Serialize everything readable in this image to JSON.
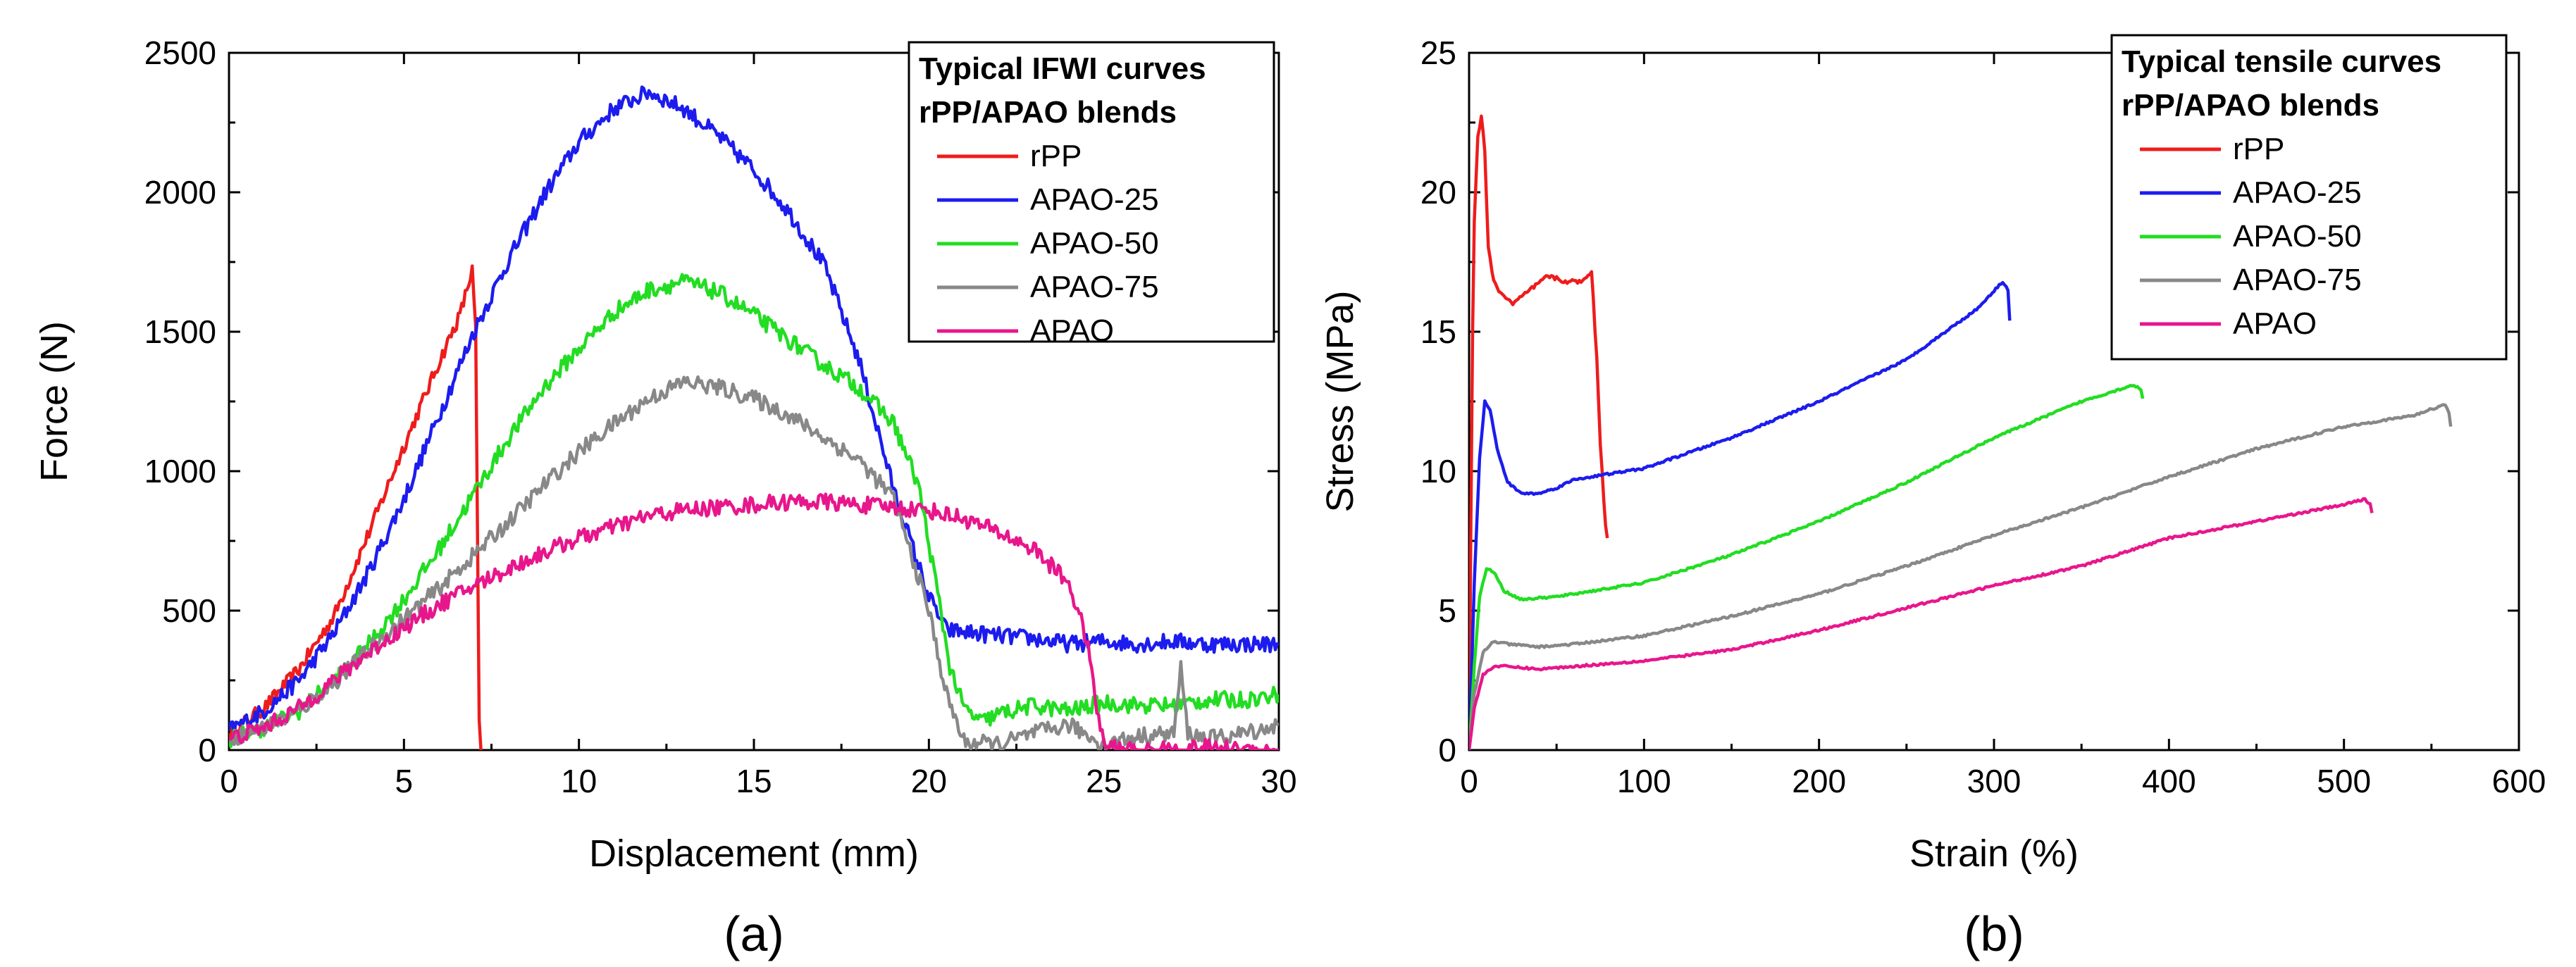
{
  "chart_data": [
    {
      "id": "a",
      "type": "line",
      "panel_label": "(a)",
      "xlabel": "Displacement (mm)",
      "ylabel": "Force (N)",
      "xlim": [
        0,
        30
      ],
      "ylim": [
        0,
        2500
      ],
      "xticks": [
        0,
        5,
        10,
        15,
        20,
        25,
        30
      ],
      "yticks": [
        0,
        500,
        1000,
        1500,
        2000,
        2500
      ],
      "legend": {
        "title_lines": [
          "Typical IFWI curves",
          "rPP/APAO blends"
        ],
        "position": "top-right"
      },
      "series": [
        {
          "name": "rPP",
          "color": "#ee1c1c",
          "noise": 0.01,
          "points": [
            [
              0,
              60
            ],
            [
              1,
              150
            ],
            [
              2,
              290
            ],
            [
              3,
              480
            ],
            [
              4,
              780
            ],
            [
              5,
              1090
            ],
            [
              6,
              1390
            ],
            [
              6.6,
              1560
            ],
            [
              6.95,
              1720
            ],
            [
              7.05,
              1500
            ],
            [
              7.1,
              800
            ],
            [
              7.15,
              100
            ],
            [
              7.2,
              0
            ]
          ]
        },
        {
          "name": "APAO-25",
          "color": "#1c1cee",
          "noise": 0.012,
          "points": [
            [
              0,
              70
            ],
            [
              1,
              140
            ],
            [
              2,
              250
            ],
            [
              3,
              420
            ],
            [
              4,
              640
            ],
            [
              5,
              900
            ],
            [
              6,
              1200
            ],
            [
              7,
              1500
            ],
            [
              8,
              1760
            ],
            [
              9,
              1990
            ],
            [
              10,
              2180
            ],
            [
              11,
              2300
            ],
            [
              12,
              2360
            ],
            [
              13,
              2300
            ],
            [
              14,
              2200
            ],
            [
              15,
              2080
            ],
            [
              16,
              1930
            ],
            [
              17,
              1740
            ],
            [
              18,
              1400
            ],
            [
              19,
              930
            ],
            [
              20,
              550
            ],
            [
              20.5,
              430
            ],
            [
              22,
              410
            ],
            [
              23,
              400
            ],
            [
              24,
              380
            ],
            [
              25,
              390
            ],
            [
              26,
              380
            ],
            [
              27,
              390
            ],
            [
              28,
              380
            ],
            [
              30,
              380
            ]
          ]
        },
        {
          "name": "APAO-50",
          "color": "#22dd22",
          "noise": 0.012,
          "points": [
            [
              0,
              40
            ],
            [
              1,
              80
            ],
            [
              2,
              140
            ],
            [
              3,
              250
            ],
            [
              4,
              380
            ],
            [
              5,
              540
            ],
            [
              6,
              720
            ],
            [
              7,
              920
            ],
            [
              8,
              1120
            ],
            [
              9,
              1300
            ],
            [
              10,
              1440
            ],
            [
              11,
              1570
            ],
            [
              12,
              1650
            ],
            [
              13,
              1680
            ],
            [
              14,
              1640
            ],
            [
              15,
              1560
            ],
            [
              16,
              1470
            ],
            [
              17,
              1380
            ],
            [
              18,
              1300
            ],
            [
              19,
              1170
            ],
            [
              19.7,
              950
            ],
            [
              20.2,
              600
            ],
            [
              20.6,
              300
            ],
            [
              21,
              150
            ],
            [
              21.5,
              100
            ],
            [
              22,
              130
            ],
            [
              23,
              160
            ],
            [
              24,
              140
            ],
            [
              25,
              170
            ],
            [
              26,
              160
            ],
            [
              27,
              160
            ],
            [
              28,
              180
            ],
            [
              29,
              180
            ],
            [
              30,
              200
            ]
          ]
        },
        {
          "name": "APAO-75",
          "color": "#888888",
          "noise": 0.012,
          "points": [
            [
              0,
              40
            ],
            [
              1,
              80
            ],
            [
              2,
              140
            ],
            [
              3,
              240
            ],
            [
              4,
              360
            ],
            [
              5,
              470
            ],
            [
              6,
              580
            ],
            [
              7,
              700
            ],
            [
              8,
              820
            ],
            [
              9,
              950
            ],
            [
              10,
              1070
            ],
            [
              11,
              1170
            ],
            [
              12,
              1260
            ],
            [
              13,
              1320
            ],
            [
              14,
              1300
            ],
            [
              15,
              1260
            ],
            [
              16,
              1200
            ],
            [
              17,
              1120
            ],
            [
              18,
              1040
            ],
            [
              19,
              900
            ],
            [
              20,
              500
            ],
            [
              20.5,
              200
            ],
            [
              21,
              30
            ],
            [
              22,
              20
            ],
            [
              23,
              60
            ],
            [
              24,
              90
            ],
            [
              25,
              20
            ],
            [
              26,
              50
            ],
            [
              27,
              60
            ],
            [
              27.2,
              290
            ],
            [
              27.4,
              60
            ],
            [
              28,
              40
            ],
            [
              29,
              60
            ],
            [
              30,
              90
            ]
          ]
        },
        {
          "name": "APAO",
          "color": "#e8168c",
          "noise": 0.012,
          "points": [
            [
              0,
              40
            ],
            [
              1,
              80
            ],
            [
              2,
              150
            ],
            [
              3,
              250
            ],
            [
              4,
              350
            ],
            [
              5,
              440
            ],
            [
              6,
              520
            ],
            [
              7,
              590
            ],
            [
              8,
              650
            ],
            [
              9,
              710
            ],
            [
              10,
              760
            ],
            [
              11,
              800
            ],
            [
              12,
              840
            ],
            [
              13,
              860
            ],
            [
              14,
              870
            ],
            [
              15,
              880
            ],
            [
              16,
              890
            ],
            [
              17,
              890
            ],
            [
              18,
              880
            ],
            [
              19,
              870
            ],
            [
              20,
              860
            ],
            [
              21,
              830
            ],
            [
              22,
              780
            ],
            [
              23,
              720
            ],
            [
              24,
              600
            ],
            [
              24.5,
              400
            ],
            [
              24.8,
              150
            ],
            [
              25,
              20
            ],
            [
              25.5,
              0
            ],
            [
              26,
              0
            ],
            [
              27,
              0
            ],
            [
              28,
              10
            ],
            [
              29,
              0
            ],
            [
              30,
              0
            ]
          ]
        }
      ]
    },
    {
      "id": "b",
      "type": "line",
      "panel_label": "(b)",
      "xlabel": "Strain (%)",
      "ylabel": "Stress (MPa)",
      "xlim": [
        0,
        600
      ],
      "ylim": [
        0,
        25
      ],
      "xticks": [
        0,
        100,
        200,
        300,
        400,
        500,
        600
      ],
      "yticks": [
        0,
        5,
        10,
        15,
        20,
        25
      ],
      "legend": {
        "title_lines": [
          "Typical tensile curves",
          "rPP/APAO blends"
        ],
        "position": "top-right"
      },
      "series": [
        {
          "name": "rPP",
          "color": "#ee1c1c",
          "noise": 0.003,
          "points": [
            [
              0,
              0
            ],
            [
              1,
              8
            ],
            [
              2,
              15
            ],
            [
              3,
              19
            ],
            [
              5,
              22
            ],
            [
              7,
              22.7
            ],
            [
              9,
              21.5
            ],
            [
              11,
              18
            ],
            [
              14,
              16.8
            ],
            [
              18,
              16.4
            ],
            [
              25,
              16
            ],
            [
              35,
              16.5
            ],
            [
              45,
              17
            ],
            [
              55,
              16.8
            ],
            [
              65,
              16.8
            ],
            [
              70,
              17.2
            ],
            [
              73,
              14
            ],
            [
              75,
              11
            ],
            [
              78,
              8
            ],
            [
              79,
              7.6
            ]
          ]
        },
        {
          "name": "APAO-25",
          "color": "#1c1cee",
          "noise": 0.0015,
          "points": [
            [
              0,
              0
            ],
            [
              3,
              6
            ],
            [
              6,
              10.5
            ],
            [
              9,
              12.5
            ],
            [
              12,
              12.2
            ],
            [
              16,
              10.8
            ],
            [
              22,
              9.6
            ],
            [
              30,
              9.2
            ],
            [
              40,
              9.2
            ],
            [
              50,
              9.4
            ],
            [
              60,
              9.7
            ],
            [
              80,
              9.9
            ],
            [
              100,
              10.1
            ],
            [
              150,
              11.2
            ],
            [
              200,
              12.5
            ],
            [
              250,
              14
            ],
            [
              290,
              15.8
            ],
            [
              305,
              16.8
            ],
            [
              308,
              16.5
            ],
            [
              309,
              15.4
            ]
          ]
        },
        {
          "name": "APAO-50",
          "color": "#22dd22",
          "noise": 0.0015,
          "points": [
            [
              0,
              0
            ],
            [
              3,
              3
            ],
            [
              6,
              5.5
            ],
            [
              10,
              6.5
            ],
            [
              14,
              6.4
            ],
            [
              20,
              5.7
            ],
            [
              30,
              5.4
            ],
            [
              50,
              5.5
            ],
            [
              100,
              6
            ],
            [
              150,
              7
            ],
            [
              200,
              8.2
            ],
            [
              250,
              9.6
            ],
            [
              300,
              11.2
            ],
            [
              350,
              12.5
            ],
            [
              380,
              13.1
            ],
            [
              384,
              12.9
            ],
            [
              385,
              12.6
            ]
          ]
        },
        {
          "name": "APAO-75",
          "color": "#888888",
          "noise": 0.0015,
          "points": [
            [
              0,
              0
            ],
            [
              3,
              2
            ],
            [
              8,
              3.5
            ],
            [
              14,
              3.9
            ],
            [
              22,
              3.8
            ],
            [
              40,
              3.7
            ],
            [
              60,
              3.8
            ],
            [
              100,
              4.1
            ],
            [
              150,
              4.8
            ],
            [
              200,
              5.6
            ],
            [
              250,
              6.6
            ],
            [
              300,
              7.7
            ],
            [
              350,
              8.7
            ],
            [
              400,
              9.8
            ],
            [
              450,
              10.8
            ],
            [
              500,
              11.6
            ],
            [
              540,
              12
            ],
            [
              558,
              12.4
            ],
            [
              560,
              12.1
            ],
            [
              561,
              11.6
            ]
          ]
        },
        {
          "name": "APAO",
          "color": "#e8168c",
          "noise": 0.0015,
          "points": [
            [
              0,
              0
            ],
            [
              3,
              1.5
            ],
            [
              8,
              2.7
            ],
            [
              14,
              3
            ],
            [
              22,
              3
            ],
            [
              40,
              2.9
            ],
            [
              60,
              3
            ],
            [
              100,
              3.2
            ],
            [
              150,
              3.6
            ],
            [
              200,
              4.3
            ],
            [
              250,
              5.1
            ],
            [
              300,
              5.9
            ],
            [
              350,
              6.6
            ],
            [
              400,
              7.6
            ],
            [
              450,
              8.2
            ],
            [
              500,
              8.8
            ],
            [
              512,
              9
            ],
            [
              515,
              8.8
            ],
            [
              516,
              8.5
            ]
          ]
        }
      ]
    }
  ]
}
